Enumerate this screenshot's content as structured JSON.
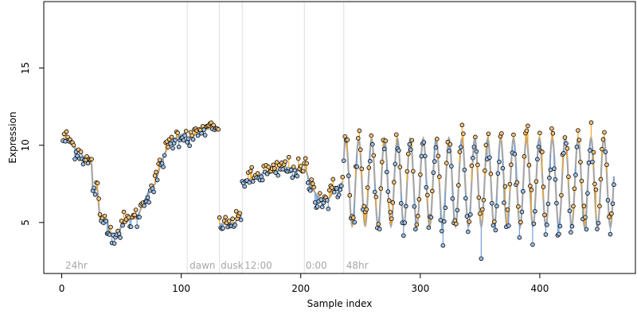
{
  "chart_data": {
    "type": "scatter",
    "title": "",
    "xlabel": "Sample index",
    "ylabel": "Expression",
    "xlim": [
      -15,
      480
    ],
    "ylim": [
      1.7,
      19.3
    ],
    "x_ticks": [
      0,
      100,
      200,
      300,
      400
    ],
    "y_ticks": [
      5,
      10,
      15
    ],
    "grid": false,
    "legend": "none",
    "colors": {
      "fitted_line": "#a6a6a6",
      "residual_above": "#f5a623",
      "residual_below": "#6fa0d8",
      "point_above": "#f5c27a",
      "point_below": "#9bbfe8",
      "point_outline": "#000000",
      "divider": "#dddddd",
      "phase_label": "#a6a6a6",
      "axis": "#000000"
    },
    "dividers": [
      105,
      132,
      151,
      203,
      236
    ],
    "phase_labels": [
      {
        "text": "24hr",
        "x": 3
      },
      {
        "text": "dawn",
        "x": 107
      },
      {
        "text": "dusk",
        "x": 133
      },
      {
        "text": "12:00",
        "x": 153
      },
      {
        "text": "0:00",
        "x": 204
      },
      {
        "text": "48hr",
        "x": 238
      }
    ],
    "segments": [
      {
        "name": "24hr",
        "x_start": 1,
        "x_end": 104,
        "knots": [
          [
            1,
            10.4
          ],
          [
            6,
            10.4
          ],
          [
            10,
            9.9
          ],
          [
            17,
            9.4
          ],
          [
            20,
            9.0
          ],
          [
            25,
            8.8
          ],
          [
            26,
            7.3
          ],
          [
            30,
            7.1
          ],
          [
            32,
            5.2
          ],
          [
            38,
            5.2
          ],
          [
            40,
            4.3
          ],
          [
            48,
            4.3
          ],
          [
            50,
            4.9
          ],
          [
            58,
            5.2
          ],
          [
            63,
            5.3
          ],
          [
            68,
            6.2
          ],
          [
            72,
            6.9
          ],
          [
            78,
            7.5
          ],
          [
            83,
            8.8
          ],
          [
            87,
            9.6
          ],
          [
            92,
            10.3
          ],
          [
            98,
            10.6
          ],
          [
            104,
            10.8
          ]
        ],
        "noise": 0.35
      },
      {
        "name": "dawn",
        "x_start": 105,
        "x_end": 131,
        "knots": [
          [
            105,
            10.4
          ],
          [
            112,
            10.7
          ],
          [
            118,
            11.0
          ],
          [
            125,
            11.1
          ],
          [
            131,
            11.0
          ]
        ],
        "noise": 0.25
      },
      {
        "name": "dusk",
        "x_start": 132,
        "x_end": 150,
        "knots": [
          [
            132,
            4.9
          ],
          [
            140,
            4.9
          ],
          [
            145,
            5.0
          ],
          [
            150,
            5.5
          ]
        ],
        "noise": 0.25
      },
      {
        "name": "12:00",
        "x_start": 151,
        "x_end": 202,
        "knots": [
          [
            151,
            7.7
          ],
          [
            158,
            7.8
          ],
          [
            165,
            8.0
          ],
          [
            170,
            8.3
          ],
          [
            178,
            8.2
          ],
          [
            185,
            8.6
          ],
          [
            195,
            8.5
          ],
          [
            202,
            8.2
          ]
        ],
        "noise": 0.35
      },
      {
        "name": "0:00",
        "x_start": 203,
        "x_end": 235,
        "knots": [
          [
            203,
            8.8
          ],
          [
            208,
            7.4
          ],
          [
            214,
            6.7
          ],
          [
            220,
            6.5
          ],
          [
            224,
            6.6
          ],
          [
            230,
            7.3
          ],
          [
            235,
            7.6
          ]
        ],
        "noise": 0.45
      }
    ],
    "oscillation": {
      "name": "48hr",
      "x_start": 236,
      "x_end": 462,
      "period": 10.8,
      "mean": 7.6,
      "amplitude_start": 2.8,
      "amplitude_end": 2.9,
      "phase": 0.6,
      "noise": 0.6
    }
  }
}
